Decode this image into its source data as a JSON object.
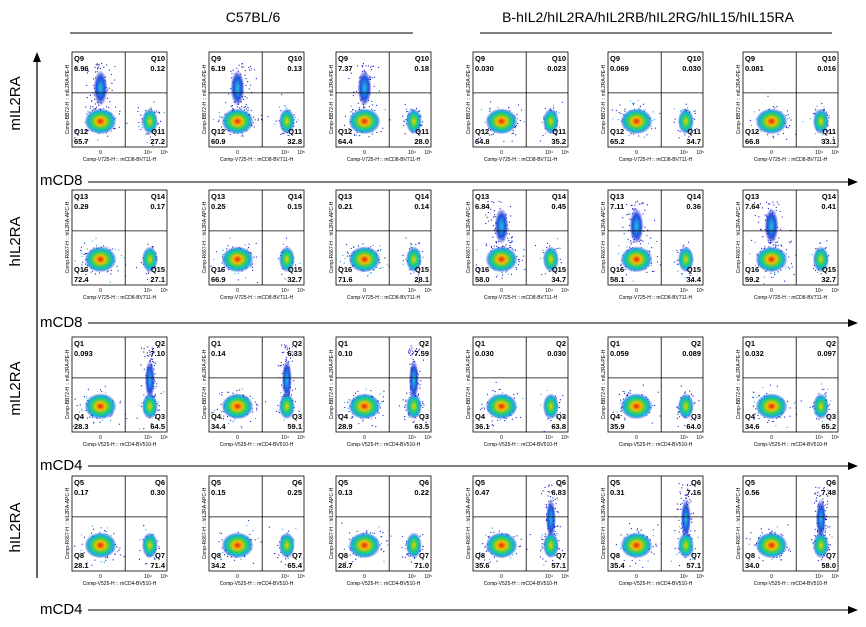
{
  "groups": [
    {
      "label": "C57BL/6"
    },
    {
      "label": "B-hIL2/hIL2RA/hIL2RB/hIL2RG/hIL15/hIL15RA"
    }
  ],
  "colors": {
    "axis": "#000000",
    "gate": "#000000",
    "low": "#1010c0",
    "mid": "#10b0e0",
    "high": "#e02010"
  },
  "chart_data": {
    "type": "scatter",
    "x_ticks": [
      "0",
      "10⁴",
      "10⁵"
    ],
    "rows": [
      {
        "ylabel": "mIL2RA",
        "xlabel": "mCD8",
        "panel_ylabel": "Comp-BB72-H :: mIL2RA-PE-H",
        "panel_xlabel": "Comp-V725-H :: mCD8-BV711-H",
        "quads": [
          "Q9",
          "Q10",
          "Q12",
          "Q11"
        ],
        "values": [
          [
            "6.96",
            "0.12",
            "65.7",
            "27.2"
          ],
          [
            "6.19",
            "0.13",
            "60.9",
            "32.8"
          ],
          [
            "7.37",
            "0.18",
            "64.4",
            "28.0"
          ],
          [
            "0.030",
            "0.023",
            "64.8",
            "35.2"
          ],
          [
            "0.069",
            "0.030",
            "65.2",
            "34.7"
          ],
          [
            "0.081",
            "0.016",
            "66.8",
            "33.1"
          ]
        ]
      },
      {
        "ylabel": "hIL2RA",
        "xlabel": "mCD8",
        "panel_ylabel": "Comp-R667-H :: hIL2RA-APC-H",
        "panel_xlabel": "Comp-V725-H :: mCD8-BV711-H",
        "quads": [
          "Q13",
          "Q14",
          "Q16",
          "Q15"
        ],
        "values": [
          [
            "0.29",
            "0.17",
            "72.4",
            "27.1"
          ],
          [
            "0.25",
            "0.15",
            "66.9",
            "32.7"
          ],
          [
            "0.21",
            "0.14",
            "71.6",
            "28.1"
          ],
          [
            "6.84",
            "0.45",
            "58.0",
            "34.7"
          ],
          [
            "7.11",
            "0.36",
            "58.1",
            "34.4"
          ],
          [
            "7.64",
            "0.41",
            "59.2",
            "32.7"
          ]
        ]
      },
      {
        "ylabel": "mIL2RA",
        "xlabel": "mCD4",
        "panel_ylabel": "Comp-BB72-H :: mIL2RA-PE-H",
        "panel_xlabel": "Comp-V525-H :: mCD4-BV510-H",
        "quads": [
          "Q1",
          "Q2",
          "Q4",
          "Q3"
        ],
        "values": [
          [
            "0.093",
            "7.10",
            "28.3",
            "64.5"
          ],
          [
            "0.14",
            "6.33",
            "34.4",
            "59.1"
          ],
          [
            "0.10",
            "7.59",
            "28.9",
            "63.5"
          ],
          [
            "0.030",
            "0.030",
            "36.1",
            "63.8"
          ],
          [
            "0.059",
            "0.089",
            "35.9",
            "64.0"
          ],
          [
            "0.032",
            "0.097",
            "34.6",
            "65.2"
          ]
        ]
      },
      {
        "ylabel": "hIL2RA",
        "xlabel": "mCD4",
        "panel_ylabel": "Comp-R667-H :: hIL2RA-APC-H",
        "panel_xlabel": "Comp-V525-H :: mCD4-BV510-H",
        "quads": [
          "Q5",
          "Q6",
          "Q8",
          "Q7"
        ],
        "values": [
          [
            "0.17",
            "0.30",
            "28.1",
            "71.4"
          ],
          [
            "0.15",
            "0.25",
            "34.2",
            "65.4"
          ],
          [
            "0.13",
            "0.22",
            "28.7",
            "71.0"
          ],
          [
            "0.47",
            "6.83",
            "35.6",
            "57.1"
          ],
          [
            "0.31",
            "7.16",
            "35.4",
            "57.1"
          ],
          [
            "0.56",
            "7.48",
            "34.0",
            "58.0"
          ]
        ]
      }
    ]
  }
}
